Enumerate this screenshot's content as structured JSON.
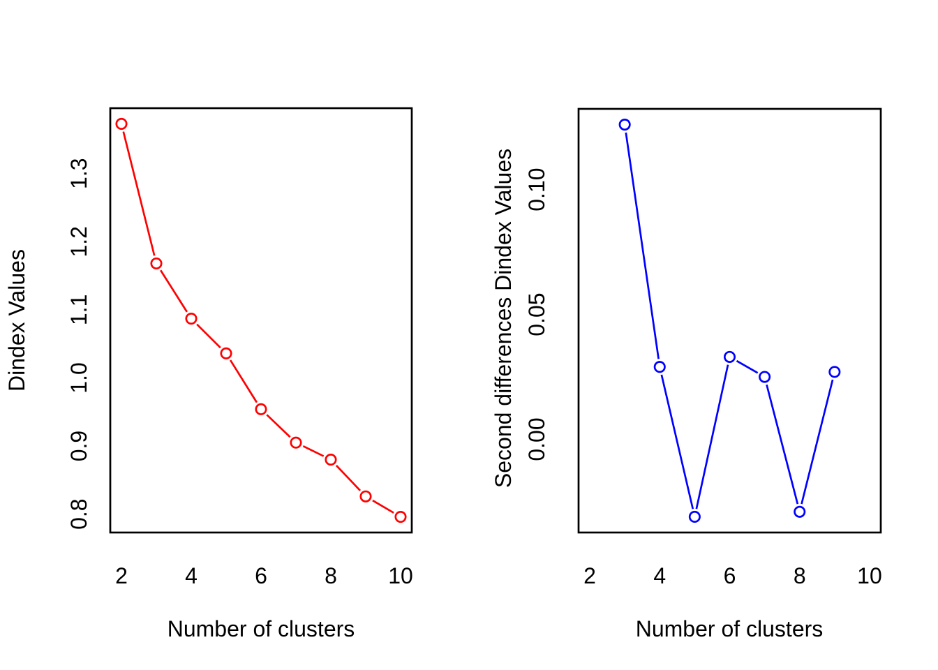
{
  "figure": {
    "background": "#ffffff",
    "text_color": "#000000",
    "box_color": "#000000"
  },
  "chart_data": [
    {
      "type": "line",
      "id": "dindex",
      "title": "",
      "xlabel": "Number of clusters",
      "ylabel": "Dindex Values",
      "series_name": "Dindex",
      "x": [
        2,
        3,
        4,
        5,
        6,
        7,
        8,
        9,
        10
      ],
      "values": [
        1.373,
        1.168,
        1.087,
        1.036,
        0.954,
        0.905,
        0.88,
        0.826,
        0.796
      ],
      "color": "#ff0000",
      "marker": "open-circle",
      "line_style": "solid-with-marker-gaps",
      "grid": false,
      "legend": null,
      "xlim": [
        1.68,
        10.32
      ],
      "ylim": [
        0.773,
        1.396
      ],
      "xticks": [
        2,
        4,
        6,
        8,
        10
      ],
      "xtick_labels": [
        "2",
        "4",
        "6",
        "8",
        "10"
      ],
      "yticks": [
        0.8,
        0.9,
        1.0,
        1.1,
        1.2,
        1.3
      ],
      "ytick_labels": [
        "0.8",
        "0.9",
        "1.0",
        "1.1",
        "1.2",
        "1.3"
      ]
    },
    {
      "type": "line",
      "id": "second-differences",
      "title": "",
      "xlabel": "Number of clusters",
      "ylabel": "Second differences Dindex Values",
      "series_name": "Second differences Dindex",
      "x": [
        3,
        4,
        5,
        6,
        7,
        8,
        9
      ],
      "values": [
        0.126,
        0.029,
        -0.031,
        0.033,
        0.025,
        -0.029,
        0.027
      ],
      "color": "#0000ff",
      "marker": "open-circle",
      "line_style": "solid-with-marker-gaps",
      "grid": false,
      "legend": null,
      "xlim": [
        1.68,
        10.32
      ],
      "ylim": [
        -0.0373,
        0.1323
      ],
      "xticks": [
        2,
        4,
        6,
        8,
        10
      ],
      "xtick_labels": [
        "2",
        "4",
        "6",
        "8",
        "10"
      ],
      "yticks": [
        0.0,
        0.05,
        0.1
      ],
      "ytick_labels": [
        "0.00",
        "0.05",
        "0.10"
      ]
    }
  ]
}
